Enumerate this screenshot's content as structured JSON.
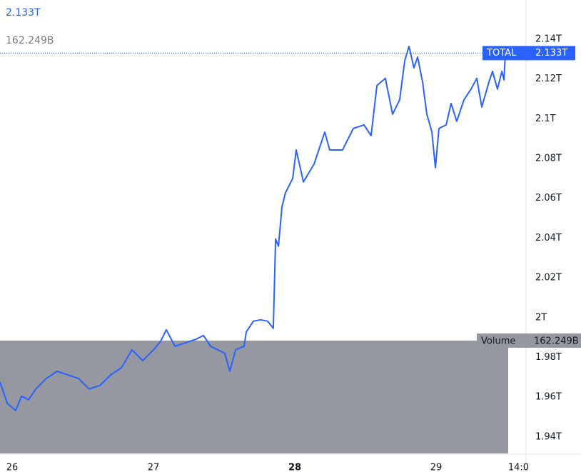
{
  "chart_data": {
    "type": "line",
    "series": [
      {
        "name": "TOTAL",
        "color": "#2962ff",
        "x": [
          25.914,
          25.965,
          26.025,
          26.066,
          26.116,
          26.167,
          26.242,
          26.318,
          26.394,
          26.47,
          26.545,
          26.621,
          26.697,
          26.773,
          26.848,
          26.924,
          27.0,
          27.051,
          27.091,
          27.152,
          27.227,
          27.303,
          27.354,
          27.404,
          27.455,
          27.505,
          27.54,
          27.581,
          27.641,
          27.657,
          27.707,
          27.758,
          27.808,
          27.848,
          27.864,
          27.884,
          27.909,
          27.934,
          27.985,
          28.01,
          28.061,
          28.136,
          28.212,
          28.247,
          28.338,
          28.414,
          28.49,
          28.54,
          28.581,
          28.641,
          28.692,
          28.742,
          28.778,
          28.808,
          28.843,
          28.869,
          28.904,
          28.934,
          28.97,
          28.995,
          29.02,
          29.071,
          29.106,
          29.146,
          29.197,
          29.247,
          29.288,
          29.323,
          29.374,
          29.399,
          29.434,
          29.465,
          29.48,
          29.49
        ],
        "values": [
          1.9676,
          1.9569,
          1.9533,
          1.9605,
          1.9587,
          1.9641,
          1.9694,
          1.973,
          1.9712,
          1.9694,
          1.9641,
          1.9659,
          1.9712,
          1.9748,
          1.9838,
          1.9784,
          1.9838,
          1.9881,
          1.9939,
          1.9856,
          1.9874,
          1.9892,
          1.991,
          1.9856,
          1.9838,
          1.982,
          1.973,
          1.9838,
          1.9856,
          1.9928,
          1.9982,
          1.9989,
          1.9982,
          1.9946,
          2.0395,
          2.0359,
          2.0556,
          2.0628,
          2.07,
          2.0843,
          2.0682,
          2.0772,
          2.0933,
          2.0843,
          2.0843,
          2.0951,
          2.0969,
          2.0915,
          2.1167,
          2.1203,
          2.1023,
          2.1095,
          2.1292,
          2.1364,
          2.1256,
          2.131,
          2.1185,
          2.1023,
          2.0933,
          2.0754,
          2.0951,
          2.0969,
          2.1077,
          2.0987,
          2.1095,
          2.1149,
          2.1203,
          2.1059,
          2.1185,
          2.1238,
          2.1149,
          2.1238,
          2.1195,
          2.133
        ]
      }
    ],
    "last_value": 2.133,
    "last_value_label": "2.133T",
    "volume_name": "Volume",
    "volume": 162.249,
    "volume_label": "162.249B",
    "xlim": [
      25.914,
      29.51
    ],
    "xticks": [
      {
        "value": 26,
        "label": "26"
      },
      {
        "value": 27,
        "label": "27"
      },
      {
        "value": 28,
        "label": "28"
      },
      {
        "value": 29,
        "label": "29"
      },
      {
        "value": 29.583,
        "label": "14:0"
      }
    ],
    "ylim": [
      1.9317,
      2.1597
    ],
    "yticks": [
      {
        "value": 2.14,
        "label": "2.14T"
      },
      {
        "value": 2.12,
        "label": "2.12T"
      },
      {
        "value": 2.1,
        "label": "2.1T"
      },
      {
        "value": 2.08,
        "label": "2.08T"
      },
      {
        "value": 2.06,
        "label": "2.06T"
      },
      {
        "value": 2.04,
        "label": "2.04T"
      },
      {
        "value": 2.02,
        "label": "2.02T"
      },
      {
        "value": 2,
        "label": "2T"
      },
      {
        "value": 1.98,
        "label": "1.98T"
      },
      {
        "value": 1.96,
        "label": "1.96T"
      },
      {
        "value": 1.94,
        "label": "1.94T"
      }
    ],
    "grid": false
  }
}
